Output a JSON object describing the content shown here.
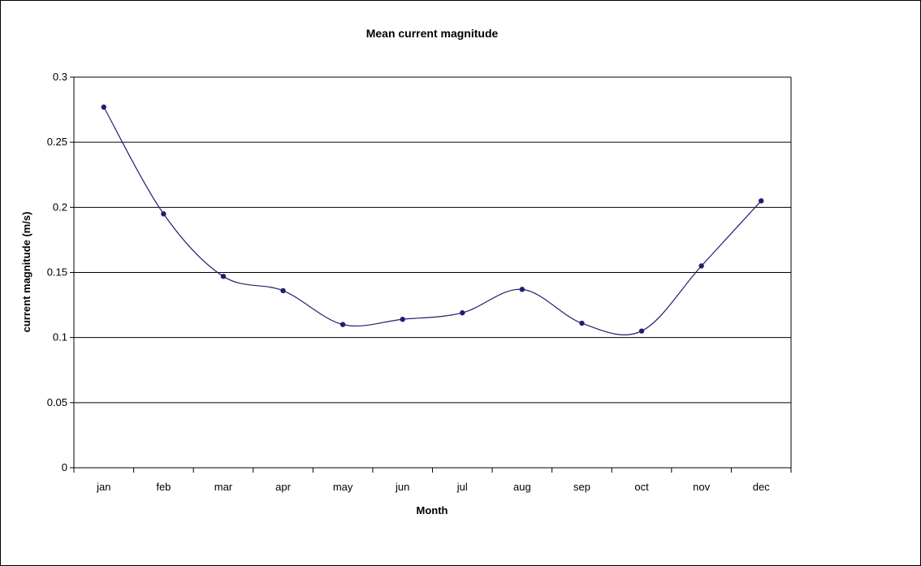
{
  "chart_data": {
    "type": "line",
    "title": "Mean current magnitude",
    "xlabel": "Month",
    "ylabel": "current magnitude (m/s)",
    "categories": [
      "jan",
      "feb",
      "mar",
      "apr",
      "may",
      "jun",
      "jul",
      "aug",
      "sep",
      "oct",
      "nov",
      "dec"
    ],
    "series": [
      {
        "values": [
          0.277,
          0.195,
          0.147,
          0.136,
          0.11,
          0.114,
          0.119,
          0.137,
          0.111,
          0.105,
          0.155,
          0.205
        ]
      }
    ],
    "ylim": [
      0,
      0.3
    ],
    "yticks": [
      "0",
      "0.05",
      "0.1",
      "0.15",
      "0.2",
      "0.25",
      "0.3"
    ],
    "grid": true,
    "smoothed": true,
    "colors": {
      "line": "#1f1f6e",
      "marker": "#1f1f6e",
      "grid": "#000000"
    }
  }
}
